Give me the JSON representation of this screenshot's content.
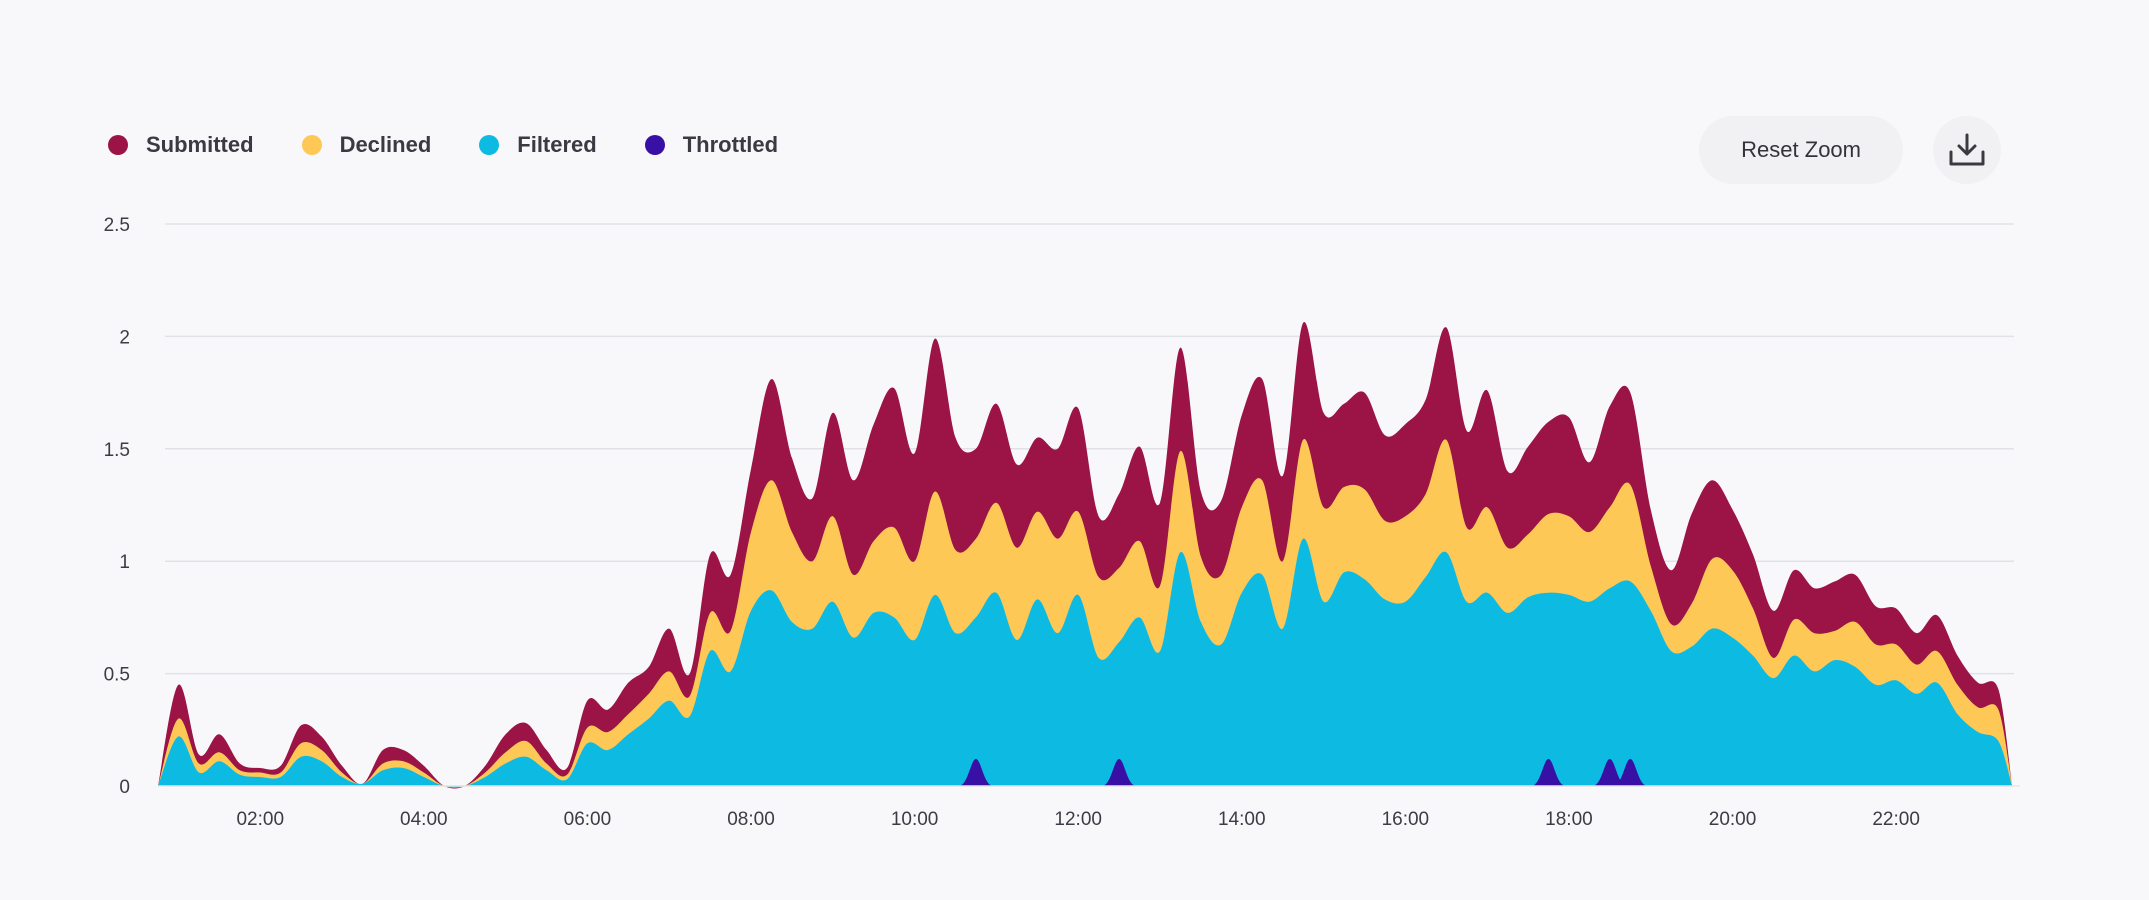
{
  "toolbar": {
    "reset_label": "Reset Zoom",
    "download_icon": "download-icon"
  },
  "chart_data": {
    "type": "area",
    "stacked": true,
    "legend_position": "top-left",
    "grid": true,
    "x_range": [
      "00:45",
      "23:25"
    ],
    "x_ticks": [
      "02:00",
      "04:00",
      "06:00",
      "08:00",
      "10:00",
      "12:00",
      "14:00",
      "16:00",
      "18:00",
      "20:00",
      "22:00"
    ],
    "y_ticks": [
      "0",
      "0.5",
      "1",
      "1.5",
      "2",
      "2.5"
    ],
    "ylim": [
      0,
      2.5
    ],
    "x": [
      "00:45",
      "01:00",
      "01:15",
      "01:30",
      "01:45",
      "02:00",
      "02:15",
      "02:30",
      "02:45",
      "03:00",
      "03:15",
      "03:30",
      "03:45",
      "04:00",
      "04:15",
      "04:30",
      "04:45",
      "05:00",
      "05:15",
      "05:30",
      "05:45",
      "06:00",
      "06:15",
      "06:30",
      "06:45",
      "07:00",
      "07:15",
      "07:30",
      "07:45",
      "08:00",
      "08:15",
      "08:30",
      "08:45",
      "09:00",
      "09:15",
      "09:30",
      "09:45",
      "10:00",
      "10:15",
      "10:30",
      "10:45",
      "11:00",
      "11:15",
      "11:30",
      "11:45",
      "12:00",
      "12:15",
      "12:30",
      "12:45",
      "13:00",
      "13:15",
      "13:30",
      "13:45",
      "14:00",
      "14:15",
      "14:30",
      "14:45",
      "15:00",
      "15:15",
      "15:30",
      "15:45",
      "16:00",
      "16:15",
      "16:30",
      "16:45",
      "17:00",
      "17:15",
      "17:30",
      "17:45",
      "18:00",
      "18:15",
      "18:30",
      "18:45",
      "19:00",
      "19:15",
      "19:30",
      "19:45",
      "20:00",
      "20:15",
      "20:30",
      "20:45",
      "21:00",
      "21:15",
      "21:30",
      "21:45",
      "22:00",
      "22:15",
      "22:30",
      "22:45",
      "23:00",
      "23:15",
      "23:25"
    ],
    "series": [
      {
        "name": "Filtered",
        "color": "#0dbbe2",
        "values": [
          0.0,
          0.22,
          0.06,
          0.11,
          0.05,
          0.04,
          0.04,
          0.13,
          0.11,
          0.04,
          0.01,
          0.07,
          0.08,
          0.04,
          0.0,
          0.0,
          0.04,
          0.1,
          0.13,
          0.07,
          0.03,
          0.19,
          0.16,
          0.23,
          0.3,
          0.38,
          0.31,
          0.6,
          0.51,
          0.78,
          0.87,
          0.73,
          0.7,
          0.82,
          0.66,
          0.77,
          0.75,
          0.65,
          0.85,
          0.68,
          0.75,
          0.86,
          0.65,
          0.83,
          0.68,
          0.85,
          0.57,
          0.64,
          0.75,
          0.6,
          1.04,
          0.73,
          0.63,
          0.86,
          0.94,
          0.7,
          1.1,
          0.82,
          0.95,
          0.92,
          0.83,
          0.82,
          0.93,
          1.04,
          0.82,
          0.86,
          0.77,
          0.84,
          0.86,
          0.85,
          0.82,
          0.88,
          0.91,
          0.78,
          0.6,
          0.62,
          0.7,
          0.66,
          0.58,
          0.48,
          0.58,
          0.51,
          0.56,
          0.53,
          0.45,
          0.47,
          0.41,
          0.46,
          0.32,
          0.24,
          0.2,
          0.0
        ]
      },
      {
        "name": "Declined",
        "color": "#fdc856",
        "values": [
          0.0,
          0.08,
          0.04,
          0.04,
          0.02,
          0.02,
          0.02,
          0.06,
          0.05,
          0.02,
          0.0,
          0.03,
          0.03,
          0.02,
          0.0,
          0.0,
          0.02,
          0.05,
          0.07,
          0.03,
          0.02,
          0.07,
          0.08,
          0.09,
          0.11,
          0.13,
          0.09,
          0.17,
          0.18,
          0.35,
          0.49,
          0.4,
          0.3,
          0.38,
          0.28,
          0.32,
          0.4,
          0.35,
          0.46,
          0.37,
          0.35,
          0.4,
          0.41,
          0.39,
          0.42,
          0.37,
          0.36,
          0.33,
          0.34,
          0.29,
          0.45,
          0.29,
          0.31,
          0.38,
          0.42,
          0.3,
          0.44,
          0.42,
          0.38,
          0.4,
          0.35,
          0.38,
          0.37,
          0.5,
          0.33,
          0.38,
          0.29,
          0.28,
          0.35,
          0.35,
          0.31,
          0.36,
          0.43,
          0.2,
          0.12,
          0.19,
          0.31,
          0.3,
          0.21,
          0.09,
          0.16,
          0.17,
          0.13,
          0.2,
          0.18,
          0.16,
          0.13,
          0.14,
          0.13,
          0.11,
          0.14,
          0.0
        ]
      },
      {
        "name": "Submitted",
        "color": "#9c1345",
        "values": [
          0.0,
          0.15,
          0.04,
          0.08,
          0.03,
          0.02,
          0.03,
          0.08,
          0.06,
          0.03,
          0.0,
          0.06,
          0.05,
          0.03,
          0.0,
          0.0,
          0.03,
          0.08,
          0.08,
          0.06,
          0.03,
          0.12,
          0.1,
          0.14,
          0.12,
          0.19,
          0.1,
          0.26,
          0.25,
          0.28,
          0.45,
          0.33,
          0.28,
          0.46,
          0.42,
          0.52,
          0.62,
          0.48,
          0.68,
          0.5,
          0.4,
          0.44,
          0.37,
          0.33,
          0.4,
          0.46,
          0.27,
          0.33,
          0.42,
          0.37,
          0.46,
          0.29,
          0.33,
          0.41,
          0.45,
          0.38,
          0.52,
          0.42,
          0.37,
          0.43,
          0.38,
          0.41,
          0.42,
          0.5,
          0.43,
          0.52,
          0.34,
          0.39,
          0.41,
          0.44,
          0.31,
          0.45,
          0.41,
          0.25,
          0.24,
          0.4,
          0.35,
          0.27,
          0.24,
          0.21,
          0.22,
          0.2,
          0.22,
          0.21,
          0.17,
          0.16,
          0.14,
          0.16,
          0.13,
          0.11,
          0.09,
          0.0
        ]
      },
      {
        "name": "Throttled",
        "color": "#3810a5",
        "values": [
          0,
          0,
          0,
          0,
          0,
          0,
          0,
          0,
          0,
          0,
          0,
          0,
          0,
          0,
          0,
          0,
          0,
          0,
          0,
          0,
          0,
          0,
          0,
          0,
          0,
          0,
          0,
          0,
          0,
          0,
          0,
          0,
          0,
          0,
          0,
          0,
          0,
          0,
          0,
          0,
          0.12,
          0,
          0,
          0,
          0,
          0,
          0,
          0.12,
          0,
          0,
          0,
          0,
          0,
          0,
          0,
          0,
          0,
          0,
          0,
          0,
          0,
          0,
          0,
          0,
          0,
          0,
          0,
          0,
          0.12,
          0,
          0,
          0.12,
          0.12,
          0,
          0,
          0,
          0,
          0,
          0,
          0,
          0,
          0,
          0,
          0,
          0,
          0,
          0,
          0,
          0,
          0,
          0,
          0
        ]
      }
    ]
  }
}
